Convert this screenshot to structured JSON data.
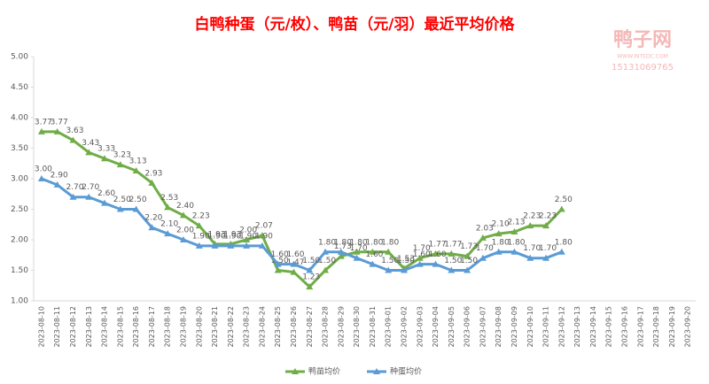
{
  "chart_data": {
    "type": "line",
    "title": "白鸭种蛋（元/枚）、鸭苗（元/羽）最近平均价格",
    "watermark": {
      "name": "鸭子网",
      "site": "WWW.INTEDC.COM",
      "phone": "15131069765"
    },
    "categories": [
      "2023-08-10",
      "2023-08-11",
      "2023-08-12",
      "2023-08-13",
      "2023-08-14",
      "2023-08-15",
      "2023-08-16",
      "2023-08-17",
      "2023-08-18",
      "2023-08-19",
      "2023-08-20",
      "2023-08-21",
      "2023-08-22",
      "2023-08-23",
      "2023-08-24",
      "2023-08-25",
      "2023-08-26",
      "2023-08-27",
      "2023-08-28",
      "2023-08-29",
      "2023-08-30",
      "2023-08-31",
      "2023-09-01",
      "2023-09-02",
      "2023-09-03",
      "2023-09-04",
      "2023-09-05",
      "2023-09-06",
      "2023-09-07",
      "2023-09-08",
      "2023-09-09",
      "2023-09-10",
      "2023-09-11",
      "2023-09-12",
      "2023-09-13",
      "2023-09-14",
      "2023-09-15",
      "2023-09-16",
      "2023-09-17",
      "2023-09-18",
      "2023-09-19",
      "2023-09-20"
    ],
    "series": [
      {
        "name": "鸭苗均价",
        "color": "#70ad47",
        "values": [
          3.77,
          3.77,
          3.63,
          3.43,
          3.33,
          3.23,
          3.13,
          2.93,
          2.53,
          2.4,
          2.23,
          1.93,
          1.93,
          2.0,
          2.07,
          1.5,
          1.47,
          1.23,
          1.5,
          1.73,
          1.8,
          1.8,
          1.8,
          1.53,
          1.7,
          1.77,
          1.77,
          1.73,
          2.03,
          2.1,
          2.13,
          2.23,
          2.23,
          2.5,
          null,
          null,
          null,
          null,
          null,
          null,
          null,
          null
        ],
        "value_labels": [
          "3.77",
          "3.77",
          "3.63",
          "3.43",
          "3.33",
          "3.23",
          "3.13",
          "2.93",
          "2.53",
          "2.40",
          "2.23",
          "1.93",
          "1.93",
          "2.00",
          "2.07",
          "1.50",
          "1.47",
          "1.23",
          "1.50",
          "1.73",
          "1.80",
          "1.80",
          "1.80",
          "1.53",
          "1.70",
          "1.77",
          "1.77",
          "1.73",
          "2.03",
          "2.10",
          "2.13",
          "2.23",
          "2.23",
          "2.50",
          null,
          null,
          null,
          null,
          null,
          null,
          null,
          null
        ]
      },
      {
        "name": "种蛋均价",
        "color": "#5b9bd5",
        "values": [
          3.0,
          2.9,
          2.7,
          2.7,
          2.6,
          2.5,
          2.5,
          2.2,
          2.1,
          2.0,
          1.9,
          1.9,
          1.9,
          1.9,
          1.9,
          1.6,
          1.6,
          1.5,
          1.8,
          1.8,
          1.7,
          1.6,
          1.5,
          1.5,
          1.6,
          1.6,
          1.5,
          1.5,
          1.7,
          1.8,
          1.8,
          1.7,
          1.7,
          1.8,
          null,
          null,
          null,
          null,
          null,
          null,
          null,
          null
        ],
        "value_labels": [
          "3.00",
          "2.90",
          "2.70",
          "2.70",
          "2.60",
          "2.50",
          "2.50",
          "2.20",
          "2.10",
          "2.00",
          "1.90",
          "1.90",
          "1.90",
          "1.90",
          "1.90",
          "1.60",
          "1.60",
          "1.50",
          "1.80",
          "1.80",
          "1.70",
          "1.60",
          "1.50",
          "1.50",
          "1.60",
          "1.60",
          "1.50",
          "1.50",
          "1.70",
          "1.80",
          "1.80",
          "1.70",
          "1.70",
          "1.80",
          null,
          null,
          null,
          null,
          null,
          null,
          null,
          null
        ]
      }
    ],
    "ylim": [
      1,
      5
    ],
    "yticks": [
      {
        "value": 1,
        "label": "1.00"
      },
      {
        "value": 1.5,
        "label": "1.50"
      },
      {
        "value": 2,
        "label": "2.00"
      },
      {
        "value": 2.5,
        "label": "2.50"
      },
      {
        "value": 3,
        "label": "3.00"
      },
      {
        "value": 3.5,
        "label": "3.50"
      },
      {
        "value": 4,
        "label": "4.00"
      },
      {
        "value": 4.5,
        "label": "4.50"
      },
      {
        "value": 5,
        "label": "5.00"
      }
    ],
    "grid": false,
    "legend": "bottom"
  }
}
